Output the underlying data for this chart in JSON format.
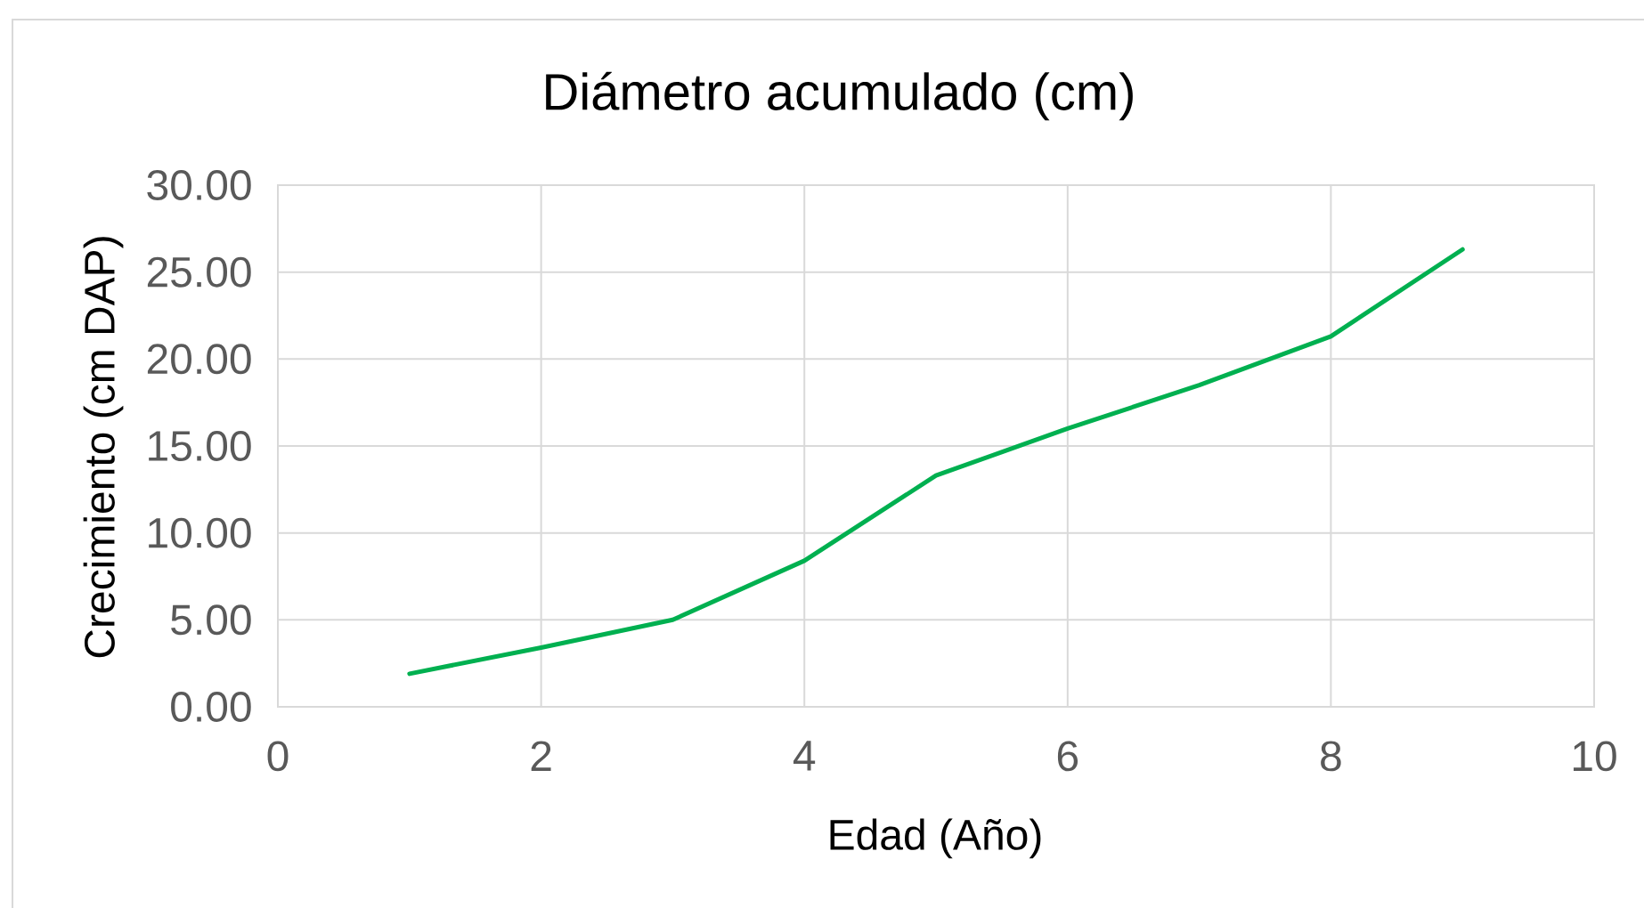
{
  "chart_data": {
    "type": "line",
    "title": "Diámetro acumulado (cm)",
    "xlabel": "Edad (Año)",
    "ylabel": "Crecimiento (cm DAP)",
    "x": [
      1,
      2,
      3,
      4,
      5,
      6,
      7,
      8,
      9
    ],
    "series": [
      {
        "color": "#00b050",
        "values": [
          1.9,
          3.4,
          5.0,
          8.4,
          13.3,
          16.0,
          18.5,
          21.3,
          26.3
        ]
      }
    ],
    "xlim": [
      0,
      10
    ],
    "ylim": [
      0,
      30
    ],
    "xticks": [
      0,
      2,
      4,
      6,
      8,
      10
    ],
    "yticks": [
      {
        "value": 0,
        "label": "0.00"
      },
      {
        "value": 5,
        "label": "5.00"
      },
      {
        "value": 10,
        "label": "10.00"
      },
      {
        "value": 15,
        "label": "15.00"
      },
      {
        "value": 20,
        "label": "20.00"
      },
      {
        "value": 25,
        "label": "25.00"
      },
      {
        "value": 30,
        "label": "30.00"
      }
    ],
    "grid": true,
    "marker": "none",
    "line_style": "solid"
  }
}
